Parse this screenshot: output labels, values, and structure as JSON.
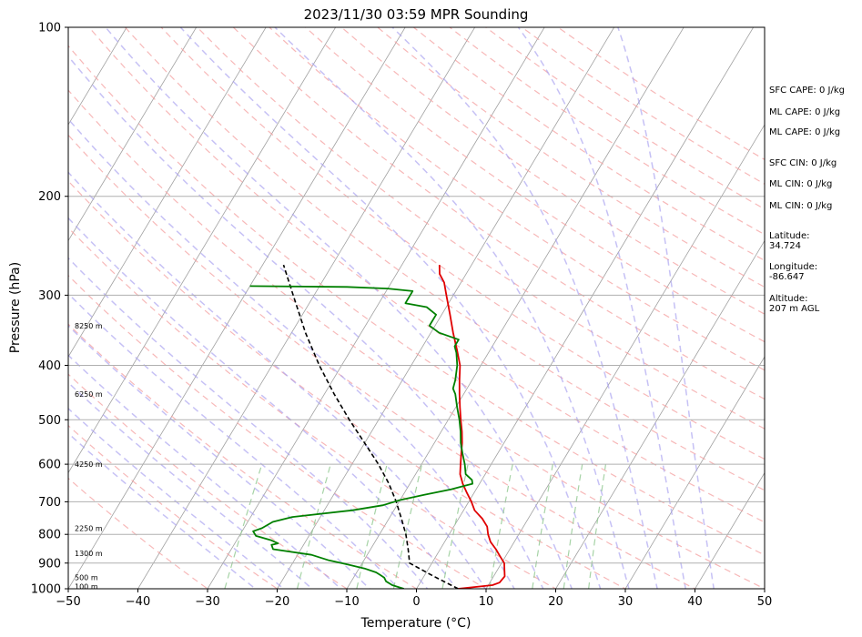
{
  "chart_data": {
    "type": "line",
    "title": "2023/11/30 03:59 MPR Sounding",
    "xlabel": "Temperature (°C)",
    "ylabel": "Pressure (hPa)",
    "xlim": [
      -50,
      50
    ],
    "ylim": [
      1000,
      100
    ],
    "y_scale": "log",
    "grid": true,
    "x_ticks": [
      -50,
      -40,
      -30,
      -20,
      -10,
      0,
      10,
      20,
      30,
      40,
      50
    ],
    "y_ticks": [
      1000,
      900,
      800,
      700,
      600,
      500,
      400,
      300,
      200,
      100
    ],
    "series": [
      {
        "color": "#e00000",
        "points": [
          [
            1000,
            6.0
          ],
          [
            985,
            10.6
          ],
          [
            975,
            11.4
          ],
          [
            950,
            11.6
          ],
          [
            925,
            11.0
          ],
          [
            900,
            10.4
          ],
          [
            875,
            9.2
          ],
          [
            850,
            8.0
          ],
          [
            825,
            6.6
          ],
          [
            800,
            5.6
          ],
          [
            775,
            4.8
          ],
          [
            750,
            3.4
          ],
          [
            725,
            1.6
          ],
          [
            700,
            0.4
          ],
          [
            675,
            -1.0
          ],
          [
            650,
            -2.4
          ],
          [
            625,
            -3.6
          ],
          [
            600,
            -4.4
          ],
          [
            575,
            -5.2
          ],
          [
            550,
            -6.0
          ],
          [
            525,
            -7.0
          ],
          [
            500,
            -8.2
          ],
          [
            475,
            -9.4
          ],
          [
            450,
            -10.6
          ],
          [
            425,
            -11.8
          ],
          [
            400,
            -13.0
          ],
          [
            375,
            -14.8
          ],
          [
            350,
            -16.8
          ],
          [
            325,
            -18.8
          ],
          [
            300,
            -21.0
          ],
          [
            285,
            -22.4
          ],
          [
            275,
            -23.8
          ],
          [
            265,
            -24.6
          ]
        ]
      },
      {
        "color": "#008000",
        "points": [
          [
            1000,
            -1.8
          ],
          [
            985,
            -3.8
          ],
          [
            970,
            -5.0
          ],
          [
            955,
            -5.6
          ],
          [
            945,
            -6.4
          ],
          [
            935,
            -7.2
          ],
          [
            920,
            -9.2
          ],
          [
            905,
            -12.0
          ],
          [
            890,
            -15.0
          ],
          [
            870,
            -18.0
          ],
          [
            850,
            -24.0
          ],
          [
            835,
            -24.6
          ],
          [
            830,
            -23.8
          ],
          [
            820,
            -25.0
          ],
          [
            805,
            -27.6
          ],
          [
            790,
            -28.4
          ],
          [
            780,
            -27.4
          ],
          [
            760,
            -26.4
          ],
          [
            745,
            -24.0
          ],
          [
            725,
            -16.0
          ],
          [
            710,
            -12.0
          ],
          [
            695,
            -10.0
          ],
          [
            680,
            -7.0
          ],
          [
            665,
            -3.6
          ],
          [
            650,
            -1.0
          ],
          [
            640,
            -1.4
          ],
          [
            625,
            -2.8
          ],
          [
            600,
            -3.8
          ],
          [
            575,
            -5.0
          ],
          [
            550,
            -6.2
          ],
          [
            525,
            -7.2
          ],
          [
            500,
            -8.4
          ],
          [
            475,
            -9.8
          ],
          [
            450,
            -11.2
          ],
          [
            440,
            -12.0
          ],
          [
            425,
            -12.4
          ],
          [
            400,
            -13.4
          ],
          [
            380,
            -14.6
          ],
          [
            370,
            -15.4
          ],
          [
            360,
            -15.4
          ],
          [
            350,
            -18.8
          ],
          [
            340,
            -20.8
          ],
          [
            325,
            -20.8
          ],
          [
            315,
            -22.8
          ],
          [
            310,
            -26.2
          ],
          [
            295,
            -26.2
          ],
          [
            292,
            -30.0
          ],
          [
            290,
            -36.0
          ],
          [
            289,
            -50.0
          ]
        ]
      }
    ],
    "parcel_profile": {
      "style": "dashed",
      "color": "#000000",
      "points": [
        [
          1000,
          6.0
        ],
        [
          950,
          1.4
        ],
        [
          900,
          -3.2
        ],
        [
          850,
          -4.6
        ],
        [
          800,
          -6.2
        ],
        [
          750,
          -8.2
        ],
        [
          700,
          -10.4
        ],
        [
          650,
          -13.0
        ],
        [
          600,
          -16.2
        ],
        [
          550,
          -20.0
        ],
        [
          500,
          -24.2
        ],
        [
          450,
          -28.6
        ],
        [
          400,
          -33.2
        ],
        [
          350,
          -38.0
        ],
        [
          300,
          -43.0
        ],
        [
          265,
          -47.0
        ]
      ]
    },
    "height_labels": [
      {
        "pressure": 990,
        "text": "100 m"
      },
      {
        "pressure": 955,
        "text": "500 m"
      },
      {
        "pressure": 865,
        "text": "1300 m"
      },
      {
        "pressure": 780,
        "text": "2250 m"
      },
      {
        "pressure": 600,
        "text": "4250 m"
      },
      {
        "pressure": 450,
        "text": "6250 m"
      },
      {
        "pressure": 340,
        "text": "8250 m"
      }
    ],
    "annotations": [
      "SFC CAPE: 0 J/kg",
      "ML CAPE: 0 J/kg",
      "ML CAPE: 0 J/kg",
      "SFC CIN: 0 J/kg",
      "ML CIN: 0 J/kg",
      "ML CIN: 0 J/kg",
      "Latitude:\n34.724",
      "Longitude:\n-86.647",
      "Altitude:\n207 m AGL"
    ],
    "background_lines": {
      "isotherms_color": "#a0a0a0",
      "dry_adiabats_color": "#f4a0a0",
      "moist_adiabats_color": "#a8a0f0",
      "mixing_ratio_color": "#90c890"
    }
  }
}
